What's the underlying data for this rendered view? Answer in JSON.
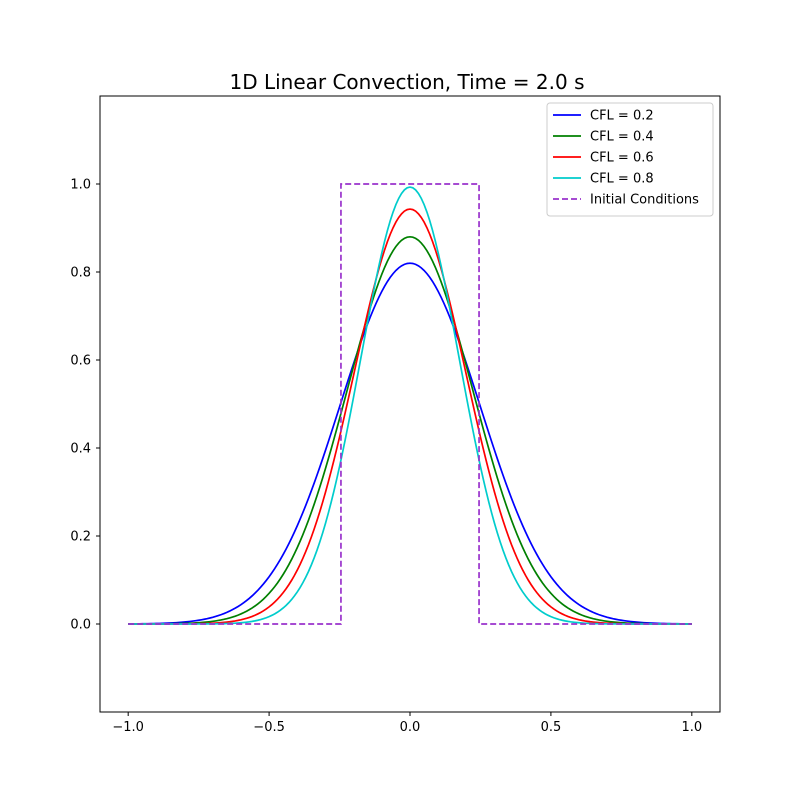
{
  "chart_data": {
    "type": "line",
    "title": "1D Linear Convection, Time = 2.0 s",
    "xlabel": "",
    "ylabel": "",
    "xlim": [
      -1.1,
      1.1
    ],
    "ylim": [
      -0.2,
      1.2
    ],
    "x_ticks": [
      -1.0,
      -0.5,
      0.0,
      0.5,
      1.0
    ],
    "x_tick_labels": [
      "−1.0",
      "−0.5",
      "0.0",
      "0.5",
      "1.0"
    ],
    "y_ticks": [
      0.0,
      0.2,
      0.4,
      0.6,
      0.8,
      1.0
    ],
    "y_tick_labels": [
      "0.0",
      "0.2",
      "0.4",
      "0.6",
      "0.8",
      "1.0"
    ],
    "grid": false,
    "legend_position": "top-right",
    "x_range": [
      -1.0,
      1.0
    ],
    "series": [
      {
        "name": "CFL = 0.2",
        "color": "#0000ff",
        "style": "solid",
        "peak": 0.82,
        "sigma": 0.248
      },
      {
        "name": "CFL = 0.4",
        "color": "#008000",
        "style": "solid",
        "peak": 0.88,
        "sigma": 0.222
      },
      {
        "name": "CFL = 0.6",
        "color": "#ff0000",
        "style": "solid",
        "peak": 0.943,
        "sigma": 0.198
      },
      {
        "name": "CFL = 0.8",
        "color": "#00cccc",
        "style": "solid",
        "peak": 0.993,
        "sigma": 0.175
      },
      {
        "name": "Initial Conditions",
        "color": "#9932cc",
        "style": "dashed",
        "x": [
          -1.0,
          -0.245,
          -0.245,
          0.245,
          0.245,
          1.0
        ],
        "y": [
          0.0,
          0.0,
          1.0,
          1.0,
          0.0,
          0.0
        ]
      }
    ]
  }
}
